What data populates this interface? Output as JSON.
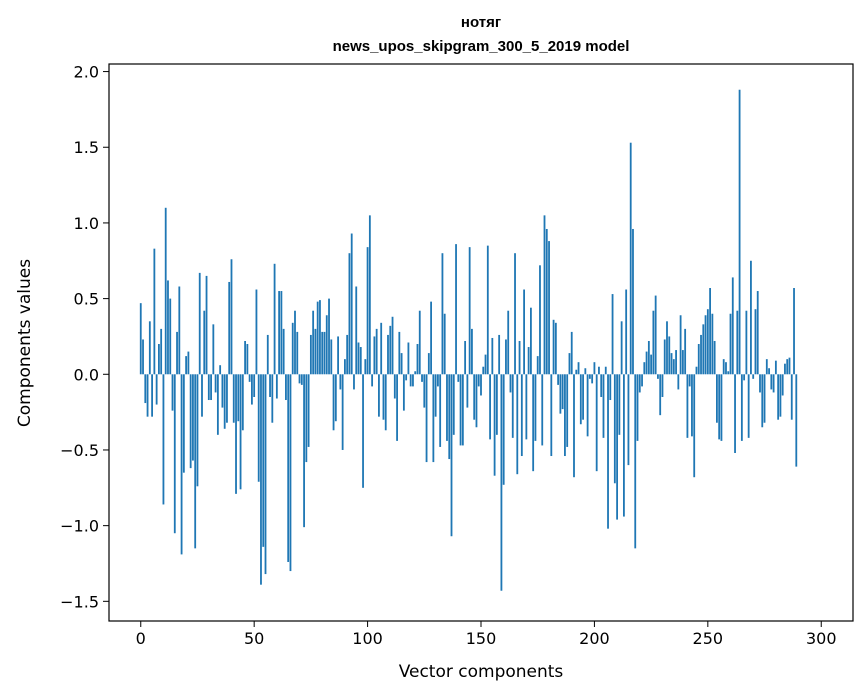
{
  "chart_data": {
    "type": "bar",
    "title": "нотяг",
    "subtitle": "news_upos_skipgram_300_5_2019 model",
    "xlabel": "Vector components",
    "ylabel": "Components values",
    "xlim": [
      -14,
      314
    ],
    "ylim": [
      -1.63,
      2.05
    ],
    "xticks": [
      0,
      50,
      100,
      150,
      200,
      250,
      300
    ],
    "yticks": [
      -1.5,
      -1.0,
      -0.5,
      0.0,
      0.5,
      1.0,
      1.5,
      2.0
    ],
    "xtick_labels": [
      "0",
      "50",
      "100",
      "150",
      "200",
      "250",
      "300"
    ],
    "ytick_labels": [
      "−1.5",
      "−1.0",
      "−0.5",
      "0.0",
      "0.5",
      "1.0",
      "1.5",
      "2.0"
    ],
    "bar_color": "#1f77b4",
    "values": [
      0.47,
      0.23,
      -0.19,
      -0.28,
      0.35,
      -0.28,
      0.83,
      -0.2,
      0.2,
      0.3,
      -0.86,
      1.1,
      0.62,
      0.5,
      -0.24,
      -1.05,
      0.28,
      0.58,
      -1.19,
      -0.65,
      0.12,
      0.15,
      -0.62,
      -0.57,
      -1.15,
      -0.74,
      0.67,
      -0.28,
      0.42,
      0.65,
      -0.17,
      -0.17,
      0.33,
      -0.12,
      -0.4,
      0.06,
      -0.22,
      -0.36,
      -0.32,
      0.61,
      0.76,
      -0.32,
      -0.79,
      -0.31,
      -0.76,
      -0.37,
      0.22,
      0.2,
      -0.05,
      -0.2,
      -0.15,
      0.56,
      -0.71,
      -1.39,
      -1.14,
      -1.32,
      0.26,
      -0.15,
      -0.32,
      0.73,
      -0.16,
      0.55,
      0.55,
      0.3,
      -0.17,
      -1.24,
      -1.3,
      0.34,
      0.42,
      0.28,
      -0.06,
      -0.07,
      -1.01,
      -0.58,
      -0.48,
      0.26,
      0.42,
      0.3,
      0.48,
      0.49,
      0.28,
      0.28,
      0.39,
      0.5,
      0.23,
      -0.37,
      -0.31,
      0.25,
      -0.1,
      -0.5,
      0.1,
      0.26,
      0.8,
      0.93,
      -0.1,
      0.58,
      0.21,
      0.18,
      -0.75,
      0.1,
      0.84,
      1.05,
      -0.08,
      0.25,
      0.3,
      -0.28,
      0.34,
      -0.3,
      -0.37,
      0.26,
      0.32,
      0.38,
      -0.16,
      -0.44,
      0.28,
      0.14,
      -0.24,
      -0.04,
      0.21,
      -0.08,
      -0.08,
      0.02,
      0.2,
      0.42,
      -0.05,
      -0.22,
      -0.58,
      0.14,
      0.48,
      -0.58,
      -0.28,
      -0.08,
      -0.48,
      0.8,
      0.4,
      -0.44,
      -0.56,
      -1.07,
      -0.4,
      0.86,
      -0.05,
      -0.47,
      -0.47,
      0.22,
      -0.22,
      0.84,
      0.3,
      -0.3,
      -0.35,
      -0.08,
      -0.14,
      0.05,
      0.13,
      0.85,
      -0.43,
      0.24,
      -0.67,
      -0.4,
      0.26,
      -1.43,
      -0.73,
      0.23,
      0.42,
      -0.12,
      -0.42,
      0.8,
      -0.66,
      0.22,
      -0.54,
      0.56,
      -0.43,
      0.18,
      0.44,
      -0.64,
      -0.44,
      0.12,
      0.72,
      -0.47,
      1.05,
      0.96,
      0.88,
      -0.54,
      0.36,
      0.34,
      -0.07,
      -0.26,
      -0.23,
      -0.54,
      -0.48,
      0.14,
      0.28,
      -0.68,
      0.03,
      0.08,
      -0.33,
      -0.3,
      0.04,
      -0.41,
      -0.03,
      -0.06,
      0.08,
      -0.64,
      0.05,
      -0.15,
      -0.42,
      0.05,
      -1.02,
      -0.17,
      0.53,
      -0.72,
      -0.96,
      -0.4,
      0.35,
      -0.94,
      0.56,
      -0.6,
      1.53,
      0.96,
      -1.15,
      -0.44,
      -0.12,
      -0.08,
      0.08,
      0.15,
      0.22,
      0.13,
      0.42,
      0.52,
      -0.03,
      -0.27,
      -0.15,
      0.23,
      0.35,
      0.25,
      0.14,
      0.1,
      0.16,
      -0.1,
      0.39,
      0.16,
      0.3,
      -0.42,
      -0.08,
      -0.41,
      -0.68,
      0.05,
      0.2,
      0.26,
      0.33,
      0.39,
      0.43,
      0.57,
      0.4,
      0.22,
      -0.32,
      -0.43,
      -0.44,
      0.1,
      0.08,
      0.02,
      0.4,
      0.64,
      -0.52,
      0.42,
      1.88,
      -0.44,
      -0.04,
      0.42,
      -0.42,
      0.75,
      -0.03,
      0.43,
      0.55,
      -0.12,
      -0.35,
      -0.32,
      0.1,
      0.04,
      -0.1,
      -0.12,
      0.09,
      -0.3,
      -0.28,
      -0.14,
      0.07,
      0.1,
      0.11,
      -0.3,
      0.57,
      -0.61
    ]
  }
}
